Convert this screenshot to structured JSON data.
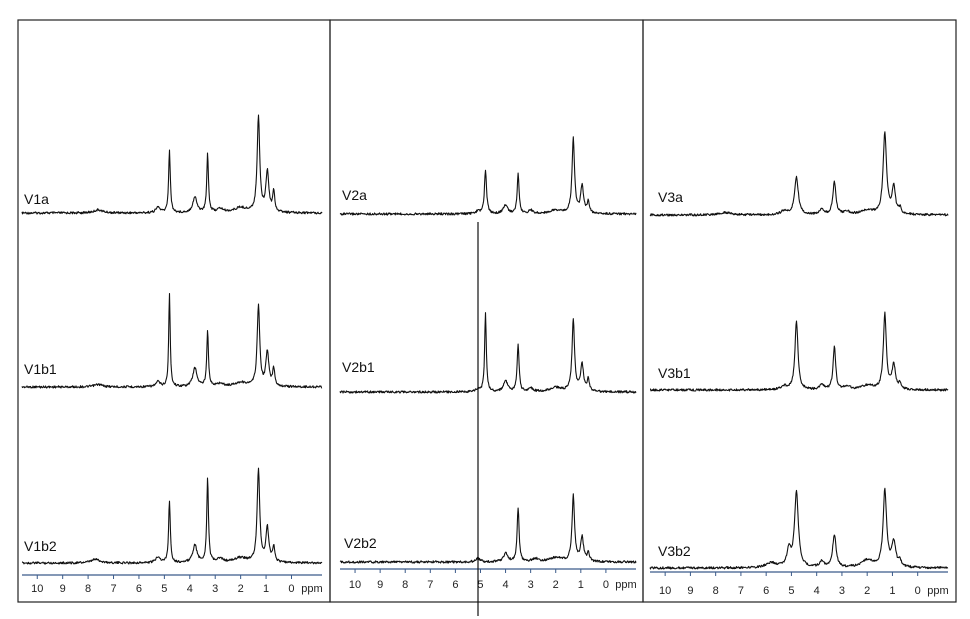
{
  "chart_data": {
    "type": "line",
    "x_unit_label": "ppm",
    "x_ticks": [
      10,
      9,
      8,
      7,
      6,
      5,
      4,
      3,
      2,
      1,
      0
    ],
    "xlim": [
      10.6,
      -1.2
    ],
    "grid": false,
    "panels": [
      {
        "spectra": [
          {
            "name": "V1a",
            "peaks": [
              [
                7.6,
                0.05,
                0.2
              ],
              [
                5.25,
                0.09,
                0.1
              ],
              [
                4.8,
                1.0,
                0.04
              ],
              [
                3.8,
                0.25,
                0.1
              ],
              [
                3.3,
                0.95,
                0.04
              ],
              [
                2.8,
                0.06,
                0.15
              ],
              [
                2.0,
                0.08,
                0.3
              ],
              [
                1.3,
                1.55,
                0.06
              ],
              [
                0.95,
                0.65,
                0.07
              ],
              [
                0.7,
                0.32,
                0.05
              ]
            ]
          },
          {
            "name": "V1b1",
            "peaks": [
              [
                7.6,
                0.04,
                0.2
              ],
              [
                5.25,
                0.08,
                0.1
              ],
              [
                4.8,
                1.5,
                0.035
              ],
              [
                3.8,
                0.3,
                0.1
              ],
              [
                3.3,
                0.9,
                0.04
              ],
              [
                2.8,
                0.05,
                0.15
              ],
              [
                2.0,
                0.07,
                0.3
              ],
              [
                1.3,
                1.3,
                0.06
              ],
              [
                0.95,
                0.55,
                0.07
              ],
              [
                0.7,
                0.28,
                0.05
              ]
            ]
          },
          {
            "name": "V1b2",
            "peaks": [
              [
                7.7,
                0.06,
                0.2
              ],
              [
                5.25,
                0.1,
                0.1
              ],
              [
                4.8,
                1.0,
                0.04
              ],
              [
                3.8,
                0.28,
                0.1
              ],
              [
                3.3,
                1.35,
                0.04
              ],
              [
                2.8,
                0.06,
                0.15
              ],
              [
                2.0,
                0.08,
                0.3
              ],
              [
                1.3,
                1.5,
                0.06
              ],
              [
                0.95,
                0.55,
                0.07
              ],
              [
                0.7,
                0.25,
                0.05
              ]
            ]
          }
        ]
      },
      {
        "spectra": [
          {
            "name": "V2a",
            "peaks": [
              [
                5.1,
                0.04,
                0.1
              ],
              [
                4.8,
                0.72,
                0.05
              ],
              [
                4.0,
                0.15,
                0.1
              ],
              [
                3.5,
                0.66,
                0.045
              ],
              [
                3.0,
                0.06,
                0.1
              ],
              [
                2.0,
                0.06,
                0.3
              ],
              [
                1.3,
                1.25,
                0.06
              ],
              [
                0.95,
                0.45,
                0.07
              ],
              [
                0.7,
                0.2,
                0.05
              ]
            ]
          },
          {
            "name": "V2b1",
            "peaks": [
              [
                5.1,
                0.04,
                0.1
              ],
              [
                4.8,
                1.3,
                0.04
              ],
              [
                4.0,
                0.18,
                0.1
              ],
              [
                3.5,
                0.78,
                0.045
              ],
              [
                3.0,
                0.06,
                0.1
              ],
              [
                2.0,
                0.07,
                0.3
              ],
              [
                1.3,
                1.2,
                0.06
              ],
              [
                0.95,
                0.45,
                0.07
              ],
              [
                0.7,
                0.2,
                0.05
              ]
            ]
          },
          {
            "name": "V2b2",
            "peaks": [
              [
                5.1,
                0.06,
                0.1
              ],
              [
                4.0,
                0.14,
                0.1
              ],
              [
                3.5,
                0.9,
                0.045
              ],
              [
                2.8,
                0.05,
                0.15
              ],
              [
                2.0,
                0.07,
                0.3
              ],
              [
                1.3,
                1.1,
                0.06
              ],
              [
                0.95,
                0.4,
                0.07
              ],
              [
                0.7,
                0.15,
                0.05
              ]
            ]
          }
        ]
      },
      {
        "spectra": [
          {
            "name": "V3a",
            "peaks": [
              [
                7.6,
                0.04,
                0.25
              ],
              [
                5.3,
                0.06,
                0.15
              ],
              [
                4.8,
                0.62,
                0.09
              ],
              [
                3.8,
                0.08,
                0.1
              ],
              [
                3.3,
                0.55,
                0.07
              ],
              [
                2.8,
                0.05,
                0.15
              ],
              [
                2.0,
                0.07,
                0.3
              ],
              [
                1.3,
                1.35,
                0.08
              ],
              [
                0.95,
                0.45,
                0.08
              ],
              [
                0.7,
                0.1,
                0.05
              ]
            ]
          },
          {
            "name": "V3b1",
            "peaks": [
              [
                5.3,
                0.06,
                0.15
              ],
              [
                4.8,
                1.15,
                0.07
              ],
              [
                3.8,
                0.09,
                0.1
              ],
              [
                3.3,
                0.72,
                0.06
              ],
              [
                2.8,
                0.05,
                0.15
              ],
              [
                2.0,
                0.07,
                0.3
              ],
              [
                1.3,
                1.25,
                0.07
              ],
              [
                0.95,
                0.4,
                0.08
              ],
              [
                0.7,
                0.1,
                0.05
              ]
            ]
          },
          {
            "name": "V3b2",
            "peaks": [
              [
                5.8,
                0.08,
                0.25
              ],
              [
                5.1,
                0.3,
                0.09
              ],
              [
                4.8,
                1.25,
                0.09
              ],
              [
                3.8,
                0.1,
                0.1
              ],
              [
                3.3,
                0.55,
                0.08
              ],
              [
                2.0,
                0.12,
                0.3
              ],
              [
                1.3,
                1.28,
                0.08
              ],
              [
                0.95,
                0.4,
                0.1
              ],
              [
                0.7,
                0.1,
                0.05
              ]
            ]
          }
        ]
      }
    ]
  }
}
